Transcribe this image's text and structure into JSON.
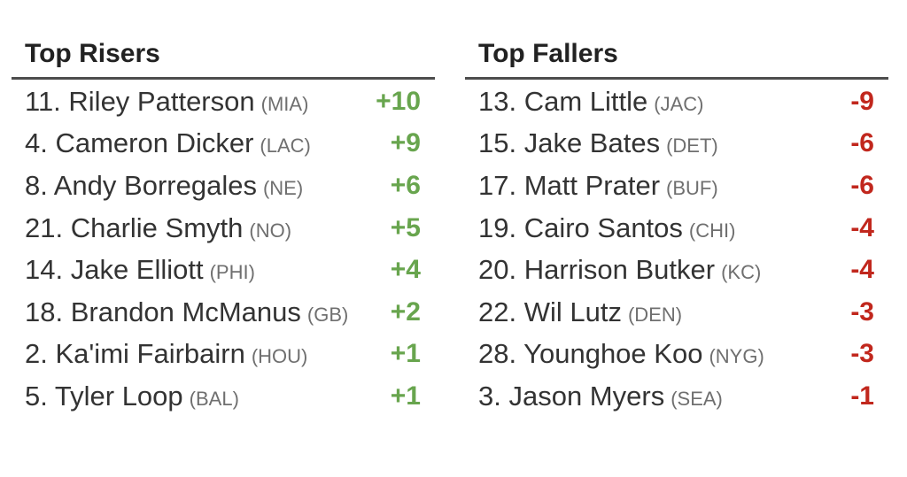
{
  "colors": {
    "riser_change": "#68a54e",
    "faller_change": "#c1271d"
  },
  "risers": {
    "title": "Top Risers",
    "items": [
      {
        "rank": "11",
        "name": "Riley Patterson",
        "team": "MIA",
        "change": "+10"
      },
      {
        "rank": "4",
        "name": "Cameron Dicker",
        "team": "LAC",
        "change": "+9"
      },
      {
        "rank": "8",
        "name": "Andy Borregales",
        "team": "NE",
        "change": "+6"
      },
      {
        "rank": "21",
        "name": "Charlie Smyth",
        "team": "NO",
        "change": "+5"
      },
      {
        "rank": "14",
        "name": "Jake Elliott",
        "team": "PHI",
        "change": "+4"
      },
      {
        "rank": "18",
        "name": "Brandon McManus",
        "team": "GB",
        "change": "+2"
      },
      {
        "rank": "2",
        "name": "Ka'imi Fairbairn",
        "team": "HOU",
        "change": "+1"
      },
      {
        "rank": "5",
        "name": "Tyler Loop",
        "team": "BAL",
        "change": "+1"
      }
    ]
  },
  "fallers": {
    "title": "Top Fallers",
    "items": [
      {
        "rank": "13",
        "name": "Cam Little",
        "team": "JAC",
        "change": "-9"
      },
      {
        "rank": "15",
        "name": "Jake Bates",
        "team": "DET",
        "change": "-6"
      },
      {
        "rank": "17",
        "name": "Matt Prater",
        "team": "BUF",
        "change": "-6"
      },
      {
        "rank": "19",
        "name": "Cairo Santos",
        "team": "CHI",
        "change": "-4"
      },
      {
        "rank": "20",
        "name": "Harrison Butker",
        "team": "KC",
        "change": "-4"
      },
      {
        "rank": "22",
        "name": "Wil Lutz",
        "team": "DEN",
        "change": "-3"
      },
      {
        "rank": "28",
        "name": "Younghoe Koo",
        "team": "NYG",
        "change": "-3"
      },
      {
        "rank": "3",
        "name": "Jason Myers",
        "team": "SEA",
        "change": "-1"
      }
    ]
  }
}
